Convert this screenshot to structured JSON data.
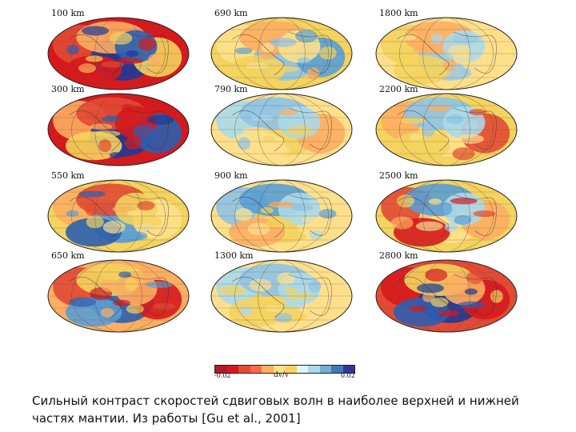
{
  "panels": [
    {
      "label": "100 km",
      "colors": [
        "#d7191c",
        "#e34a33",
        "#1a3a9b",
        "#fdae61",
        "#f4d35e",
        "#d7191c",
        "#2c5fb3"
      ]
    },
    {
      "label": "690 km",
      "colors": [
        "#f4d35e",
        "#fee08b",
        "#8fc3e6",
        "#fdae61",
        "#5a9fd4",
        "#f4d35e",
        "#fee08b"
      ]
    },
    {
      "label": "1800 km",
      "colors": [
        "#fee08b",
        "#f4d35e",
        "#9ecae1",
        "#fdae61",
        "#fee08b",
        "#f4d35e",
        "#abd9e9"
      ]
    },
    {
      "label": "300 km",
      "colors": [
        "#d7191c",
        "#fdae61",
        "#1a3a9b",
        "#e34a33",
        "#2c5fb3",
        "#f4d35e",
        "#d7191c"
      ]
    },
    {
      "label": "790 km",
      "colors": [
        "#fee08b",
        "#abd9e9",
        "#f4d35e",
        "#8fc3e6",
        "#fdae61",
        "#fee08b",
        "#abd9e9"
      ]
    },
    {
      "label": "2200 km",
      "colors": [
        "#f4d35e",
        "#fdae61",
        "#fee08b",
        "#8fc3e6",
        "#e34a33",
        "#f4d35e",
        "#abd9e9"
      ]
    },
    {
      "label": "550 km",
      "colors": [
        "#f4d35e",
        "#fdae61",
        "#5a9fd4",
        "#e34a33",
        "#fee08b",
        "#2c5fb3",
        "#f4d35e"
      ]
    },
    {
      "label": "900 km",
      "colors": [
        "#fee08b",
        "#8fc3e6",
        "#f4d35e",
        "#5a9fd4",
        "#fee08b",
        "#fdae61",
        "#abd9e9"
      ]
    },
    {
      "label": "2500 km",
      "colors": [
        "#f4d35e",
        "#e34a33",
        "#fee08b",
        "#5a9fd4",
        "#fdae61",
        "#d7191c",
        "#abd9e9"
      ]
    },
    {
      "label": "650 km",
      "colors": [
        "#fdae61",
        "#e34a33",
        "#2c5fb3",
        "#f4d35e",
        "#d7191c",
        "#5a9fd4",
        "#fdae61"
      ]
    },
    {
      "label": "1300 km",
      "colors": [
        "#fee08b",
        "#abd9e9",
        "#f4d35e",
        "#8fc3e6",
        "#fee08b",
        "#f4d35e",
        "#abd9e9"
      ]
    },
    {
      "label": "2800 km",
      "colors": [
        "#e34a33",
        "#d7191c",
        "#1a3a9b",
        "#f4d35e",
        "#d7191c",
        "#2c5fb3",
        "#fdae61"
      ]
    }
  ],
  "colorbar": {
    "min_label": "-0.02",
    "max_label": "0.02",
    "label": "dv/v",
    "colors": [
      "#b2182b",
      "#d7191c",
      "#e34a33",
      "#f46d43",
      "#fdae61",
      "#fee08b",
      "#f4d35e",
      "#e0f3f8",
      "#abd9e9",
      "#74add1",
      "#4575b4",
      "#313695"
    ]
  },
  "caption": "Сильный контраст скоростей сдвиговых волн в наиболее верхней и нижней частях мантии. Из работы [Gu et al., 2001]"
}
